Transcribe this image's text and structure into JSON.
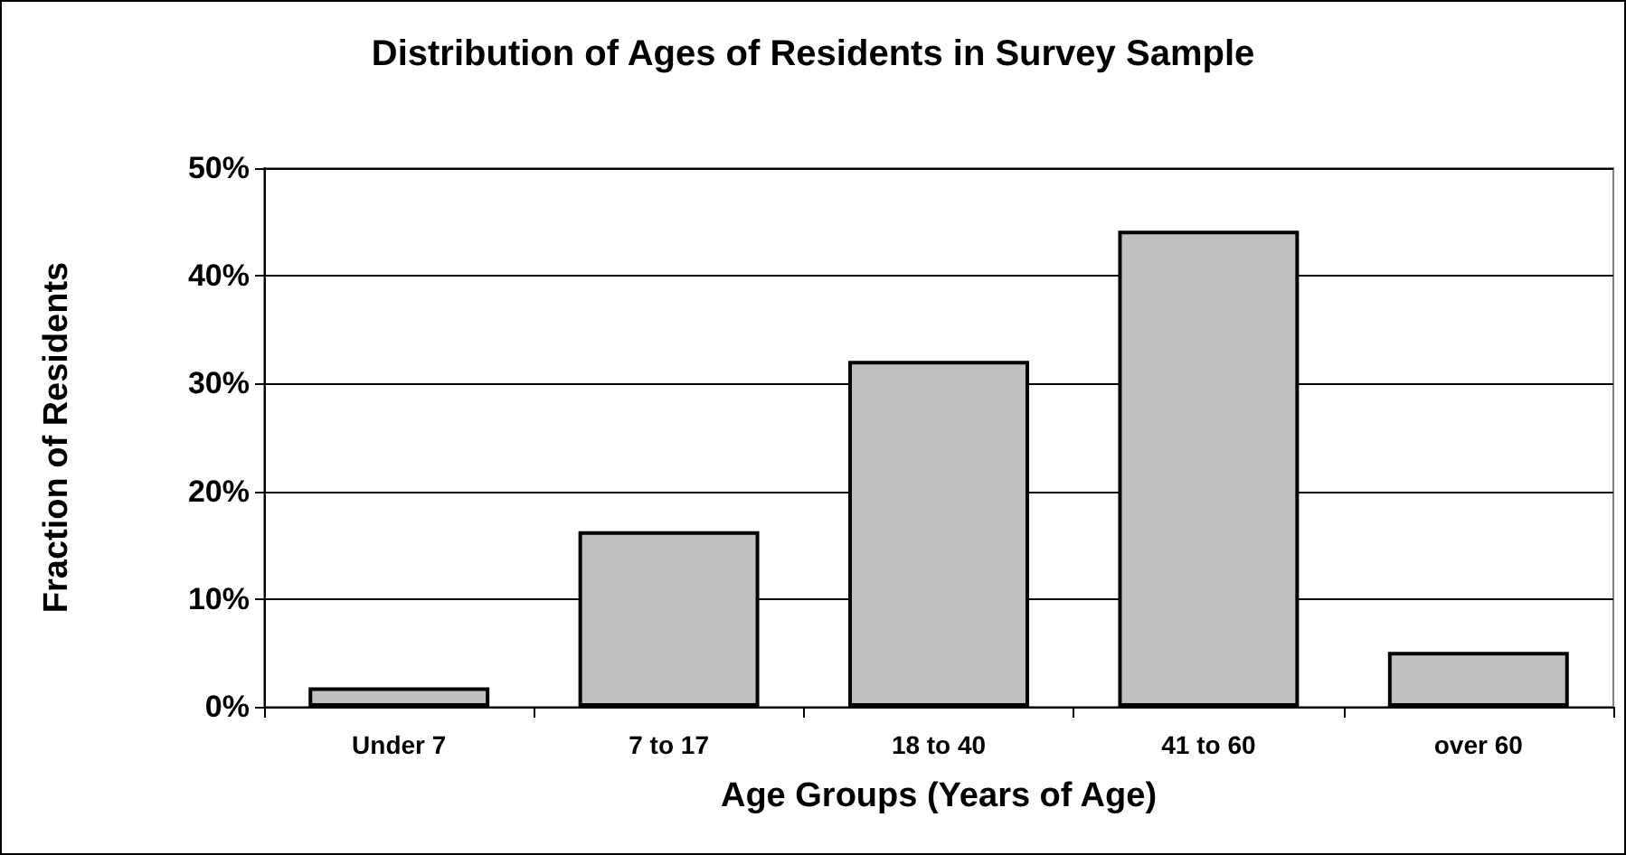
{
  "chart_data": {
    "type": "bar",
    "title": "Distribution of Ages of Residents in Survey Sample",
    "xlabel": "Age Groups (Years of Age)",
    "ylabel": "Fraction of Residents",
    "categories": [
      "Under 7",
      "7 to 17",
      "18 to 40",
      "41 to 60",
      "over 60"
    ],
    "values": [
      1.8,
      16.3,
      32.1,
      44.2,
      5.1
    ],
    "color": "#c0c0c0",
    "ylim": [
      0,
      50
    ],
    "yticks": [
      {
        "value": 0,
        "label": "0%"
      },
      {
        "value": 10,
        "label": "10%"
      },
      {
        "value": 20,
        "label": "20%"
      },
      {
        "value": 30,
        "label": "30%"
      },
      {
        "value": 40,
        "label": "40%"
      },
      {
        "value": 50,
        "label": "50%"
      }
    ],
    "grid": "y"
  }
}
